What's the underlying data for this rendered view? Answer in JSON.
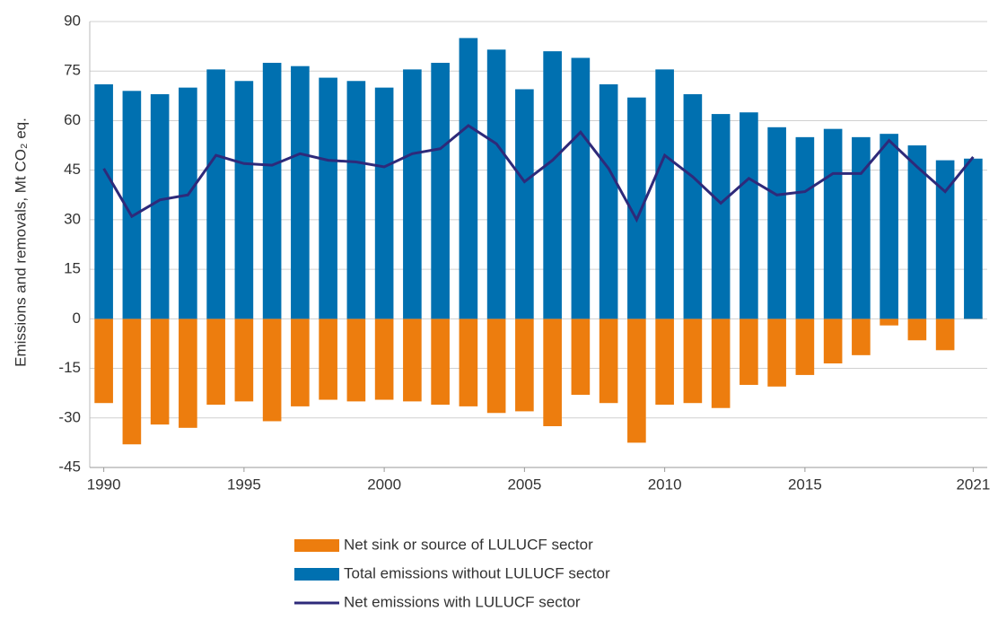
{
  "chart_data": {
    "type": "bar",
    "y_label": "Emissions and removals, Mt CO₂ eq.",
    "categories": [
      "1990",
      null,
      null,
      null,
      null,
      "1995",
      null,
      null,
      null,
      null,
      "2000",
      null,
      null,
      null,
      null,
      "2005",
      null,
      null,
      null,
      null,
      "2010",
      null,
      null,
      null,
      null,
      "2015",
      null,
      null,
      null,
      null,
      null,
      "2021"
    ],
    "series": [
      {
        "name": "Net sink or source of LULUCF sector",
        "color": "#ed7d0e",
        "kind": "bar",
        "values": [
          -25.5,
          -38,
          -32,
          -33,
          -26,
          -25,
          -31,
          -26.5,
          -24.5,
          -25,
          -24.5,
          -25,
          -26,
          -26.5,
          -28.5,
          -28,
          -32.5,
          -23,
          -25.5,
          -37.5,
          -26,
          -25.5,
          -27,
          -20,
          -20.5,
          -17,
          -13.5,
          -11,
          -2,
          -6.5,
          -9.5,
          0.5
        ]
      },
      {
        "name": "Total emissions without LULUCF sector",
        "color": "#0070b0",
        "kind": "bar",
        "values": [
          71,
          69,
          68,
          70,
          75.5,
          72,
          77.5,
          76.5,
          73,
          72,
          70,
          75.5,
          77.5,
          85,
          81.5,
          69.5,
          81,
          79,
          71,
          67,
          75.5,
          68,
          62,
          62.5,
          58,
          55,
          57.5,
          55,
          56,
          52.5,
          48,
          48.5
        ]
      },
      {
        "name": "Net emissions with LULUCF sector",
        "color": "#2e2a7a",
        "kind": "line",
        "values": [
          45.5,
          31,
          36,
          37.5,
          49.5,
          47,
          46.5,
          50,
          48,
          47.5,
          46,
          50,
          51.5,
          58.5,
          53,
          41.5,
          48,
          56.5,
          45.5,
          30,
          49.5,
          43,
          35,
          42.5,
          37.5,
          38.5,
          44,
          44,
          54,
          46,
          38.5,
          49
        ]
      }
    ],
    "ylim": [
      -45,
      90
    ],
    "yticks": [
      -45,
      -30,
      -15,
      0,
      15,
      30,
      45,
      60,
      75,
      90
    ],
    "grid": true
  }
}
